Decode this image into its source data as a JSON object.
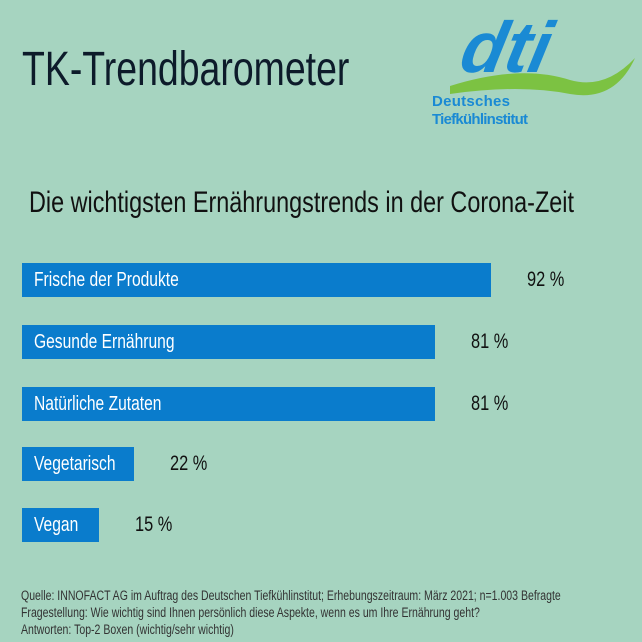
{
  "header": {
    "title": "TK-Trendbarometer"
  },
  "logo": {
    "text": "dti",
    "line1": "Deutsches",
    "line2": "Tiefkühlinstitut"
  },
  "colors": {
    "background": "#a6d4c0",
    "bar": "#0a7ccc",
    "logo_blue": "#1a8ad4",
    "logo_green": "#7cc242"
  },
  "chart_data": {
    "type": "bar",
    "orientation": "horizontal",
    "title": "Die wichtigsten Ernährungstrends in der Corona-Zeit",
    "categories": [
      "Frische der Produkte",
      "Gesunde Ernährung",
      "Natürliche Zutaten",
      "Vegetarisch",
      "Vegan"
    ],
    "values": [
      92,
      81,
      81,
      22,
      15
    ],
    "value_labels": [
      "92 %",
      "81 %",
      "81 %",
      "22 %",
      "15 %"
    ],
    "unit": "%",
    "xlim": [
      0,
      100
    ],
    "grid": false
  },
  "footer": {
    "source": "Quelle: INNOFACT AG im Auftrag des Deutschen Tiefkühlinstitut; Erhebungszeitraum: März 2021; n=1.003 Befragte",
    "question": "Fragestellung: Wie wichtig sind Ihnen persönlich diese Aspekte, wenn es um Ihre Ernährung geht?",
    "answers": "Antworten: Top-2 Boxen (wichtig/sehr wichtig)"
  }
}
